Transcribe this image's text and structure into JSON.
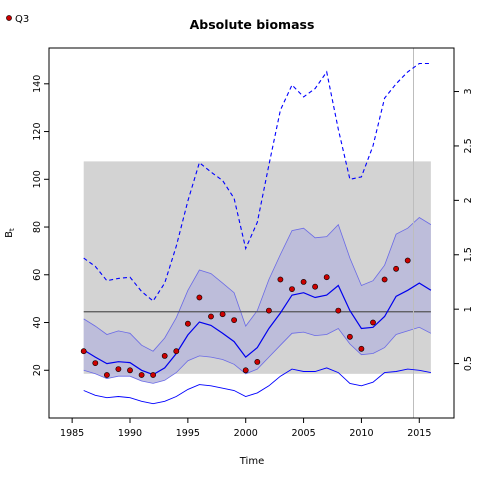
{
  "chart_data": {
    "type": "line",
    "title": "Absolute biomass",
    "xlabel": "Time",
    "ylabel": "B_t",
    "xlim": [
      1983,
      2018
    ],
    "ylim": [
      0,
      155
    ],
    "y2lim": [
      0,
      3.4
    ],
    "x_ticks": [
      1985,
      1990,
      1995,
      2000,
      2005,
      2010,
      2015
    ],
    "y_ticks": [
      20,
      40,
      60,
      80,
      100,
      120,
      140
    ],
    "y2_ticks": [
      0.5,
      1,
      1.5,
      2,
      2.5,
      3
    ],
    "legend": {
      "entries": [
        "Q3"
      ],
      "position": "top-left",
      "colors": {
        "Q3": "#cc0000"
      }
    },
    "colors": {
      "median": "#0000ee",
      "ci_fill": "#b8b8da",
      "ci_line": "#6a6ae6",
      "outer_ci": "#0000ff",
      "shade": "#d3d3d3",
      "reference_line": "#555555",
      "vline": "#bdbdbd"
    },
    "shaded_region": {
      "x": [
        1986,
        2016
      ],
      "y": [
        18.5,
        107.5
      ]
    },
    "reference_line_y": 44.5,
    "vertical_line_x": 2014.5,
    "median": {
      "x": [
        1986,
        1987,
        1988,
        1989,
        1990,
        1991,
        1992,
        1993,
        1994,
        1995,
        1996,
        1997,
        1998,
        1999,
        2000,
        2001,
        2002,
        2003,
        2004,
        2005,
        2006,
        2007,
        2008,
        2009,
        2010,
        2011,
        2012,
        2013,
        2014,
        2015,
        2016
      ],
      "y": [
        28.5,
        25.5,
        22.8,
        23.6,
        23.2,
        20.0,
        18.2,
        21.0,
        27.0,
        34.8,
        40.2,
        38.8,
        35.5,
        32.0,
        25.5,
        29.5,
        37.5,
        44.0,
        51.5,
        52.5,
        50.5,
        51.5,
        55.5,
        45.0,
        37.5,
        38.0,
        42.5,
        51.0,
        53.5,
        56.5,
        53.5
      ]
    },
    "ci_band": {
      "x": [
        1986,
        1987,
        1988,
        1989,
        1990,
        1991,
        1992,
        1993,
        1994,
        1995,
        1996,
        1997,
        1998,
        1999,
        2000,
        2001,
        2002,
        2003,
        2004,
        2005,
        2006,
        2007,
        2008,
        2009,
        2010,
        2011,
        2012,
        2013,
        2014,
        2015,
        2016
      ],
      "lower": [
        20.0,
        18.5,
        16.5,
        17.5,
        17.5,
        15.5,
        14.5,
        15.8,
        19.0,
        24.0,
        26.0,
        25.5,
        24.5,
        22.5,
        18.5,
        20.5,
        25.5,
        30.5,
        35.5,
        36.0,
        34.5,
        35.0,
        37.5,
        31.0,
        26.5,
        27.0,
        29.5,
        35.0,
        36.5,
        38.0,
        35.5
      ],
      "upper": [
        41.5,
        38.5,
        35.0,
        36.5,
        35.5,
        30.5,
        28.0,
        33.5,
        42.0,
        53.5,
        62.0,
        60.5,
        56.5,
        52.5,
        38.5,
        45.0,
        58.0,
        68.5,
        78.5,
        79.5,
        75.5,
        76.0,
        81.0,
        67.0,
        55.5,
        57.5,
        64.0,
        77.0,
        79.5,
        84.0,
        81.0
      ]
    },
    "outer_ci": {
      "x": [
        1986,
        1987,
        1988,
        1989,
        1990,
        1991,
        1992,
        1993,
        1994,
        1995,
        1996,
        1997,
        1998,
        1999,
        2000,
        2001,
        2002,
        2003,
        2004,
        2005,
        2006,
        2007,
        2008,
        2009,
        2010,
        2011,
        2012,
        2013,
        2014,
        2015,
        2016
      ],
      "lower": [
        11.5,
        9.5,
        8.5,
        9.0,
        8.5,
        7.0,
        6.0,
        7.0,
        9.0,
        12.0,
        14.0,
        13.5,
        12.5,
        11.5,
        9.0,
        10.5,
        13.5,
        17.5,
        20.5,
        19.5,
        19.5,
        21.0,
        19.0,
        14.5,
        13.5,
        15.0,
        19.0,
        19.5,
        20.5,
        20.0,
        19.0
      ],
      "upper": [
        67.0,
        63.5,
        57.5,
        58.5,
        59.0,
        53.0,
        49.0,
        56.5,
        72.0,
        91.0,
        107.0,
        103.0,
        99.5,
        92.0,
        71.0,
        82.0,
        106.0,
        129.0,
        139.5,
        134.5,
        138.0,
        145.0,
        121.0,
        100.0,
        101.0,
        114.0,
        134.0,
        140.0,
        145.0,
        148.5,
        148.5
      ]
    },
    "q3_points": {
      "x": [
        1986,
        1987,
        1988,
        1989,
        1990,
        1991,
        1992,
        1993,
        1994,
        1995,
        1996,
        1997,
        1998,
        1999,
        2000,
        2001,
        2002,
        2003,
        2004,
        2005,
        2006,
        2007,
        2008,
        2009,
        2010,
        2011,
        2012,
        2013,
        2014
      ],
      "y": [
        28,
        23,
        18,
        20.5,
        20,
        18,
        18,
        26,
        28,
        39.5,
        50.5,
        42.5,
        43.5,
        41,
        20,
        23.5,
        45,
        58,
        54,
        57,
        55,
        59,
        45,
        34,
        29,
        40,
        58,
        62.5,
        66
      ]
    }
  }
}
